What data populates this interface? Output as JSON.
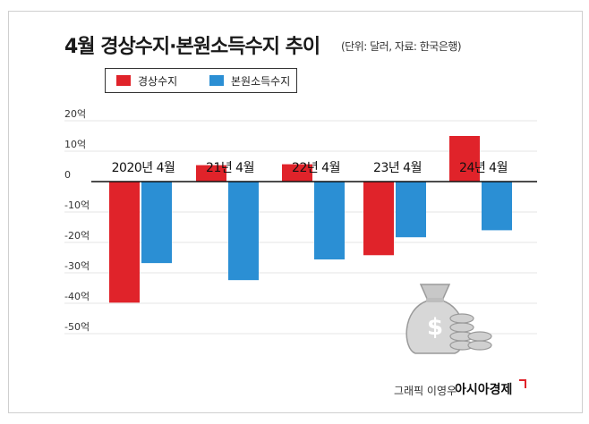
{
  "header": {
    "title": "4월 경상수지·본원소득수지 추이",
    "subtitle": "(단위: 달러, 자료: 한국은행)"
  },
  "colors": {
    "current_account": "#e0232a",
    "primary_income": "#2b8fd4",
    "grid": "#e6e6e6",
    "zero_line": "#111111"
  },
  "chart_data": {
    "type": "bar",
    "categories": [
      "2020년 4월",
      "21년 4월",
      "22년 4월",
      "23년 4월",
      "24년 4월"
    ],
    "series": [
      {
        "name": "경상수지",
        "values": [
          -39.8,
          5.4,
          5.7,
          -24.2,
          15.0
        ]
      },
      {
        "name": "본원소득수지",
        "values": [
          -26.8,
          -32.4,
          -25.6,
          -18.3,
          -16.0
        ]
      }
    ],
    "ytick_labels": [
      "20억",
      "10억",
      "0",
      "-10억",
      "-20억",
      "-30억",
      "-40억",
      "-50억"
    ],
    "ylim": [
      -50,
      20
    ],
    "unit_label": "억",
    "legend_position": "top-left",
    "grid": true
  },
  "footer": {
    "credit": "그래픽 이영우",
    "brand": "아시아경제"
  },
  "icon": "money-bag-coins-icon"
}
